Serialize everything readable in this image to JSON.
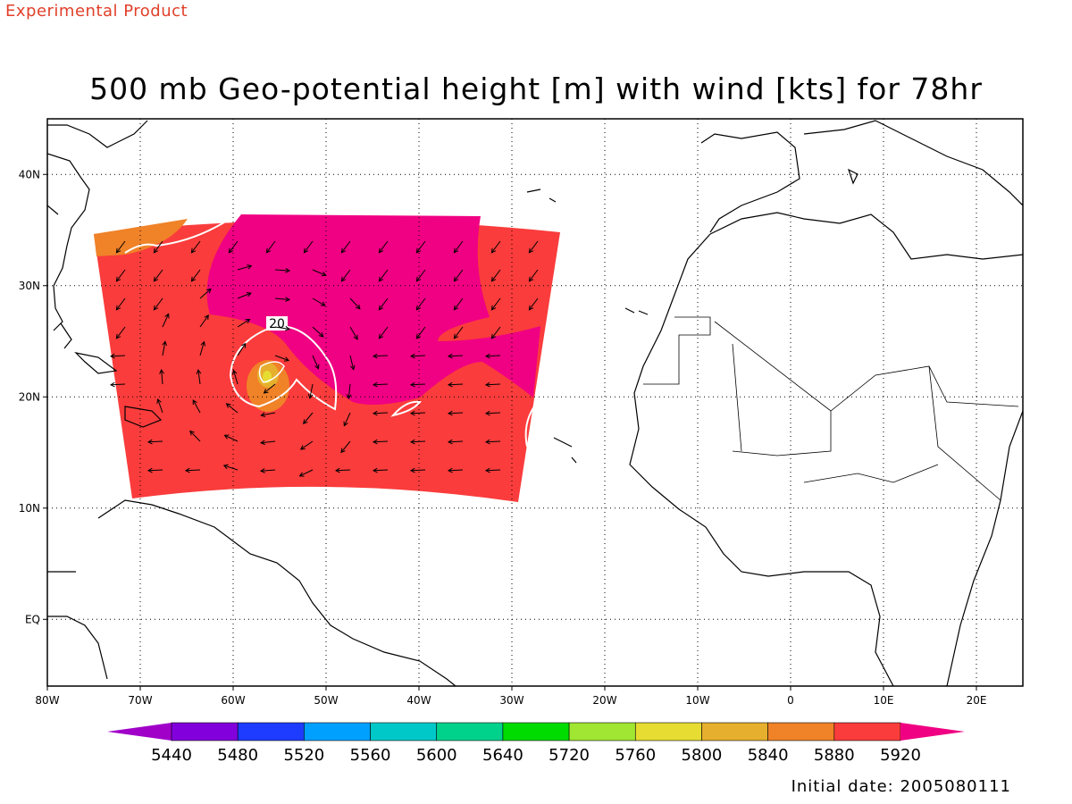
{
  "header": {
    "banner": "Experimental Product",
    "title": "500 mb Geo-potential height [m] with wind [kts] for 78hr"
  },
  "footer": {
    "initial_date": "Initial date: 2005080111"
  },
  "map": {
    "lon_range": [
      -80,
      25
    ],
    "lat_range": [
      -6,
      45
    ],
    "lon_ticks": [
      {
        "lon": -80,
        "label": "80W"
      },
      {
        "lon": -70,
        "label": "70W"
      },
      {
        "lon": -60,
        "label": "60W"
      },
      {
        "lon": -50,
        "label": "50W"
      },
      {
        "lon": -40,
        "label": "40W"
      },
      {
        "lon": -30,
        "label": "30W"
      },
      {
        "lon": -20,
        "label": "20W"
      },
      {
        "lon": -10,
        "label": "10W"
      },
      {
        "lon": 0,
        "label": "0"
      },
      {
        "lon": 10,
        "label": "10E"
      },
      {
        "lon": 20,
        "label": "20E"
      }
    ],
    "lat_ticks": [
      {
        "lat": 40,
        "label": "40N"
      },
      {
        "lat": 30,
        "label": "30N"
      },
      {
        "lat": 20,
        "label": "20N"
      },
      {
        "lat": 10,
        "label": "10N"
      },
      {
        "lat": 0,
        "label": "EQ"
      }
    ],
    "contour_label": "20",
    "grid": "dotted",
    "colors": {
      "h5880": "#f08228",
      "h5920": "#fa3c3c",
      "h5960": "#f00082",
      "h5840": "#e6af2d",
      "h5800": "#e6dc32"
    }
  },
  "colorbar": {
    "colors": [
      "#a000c8",
      "#8200dc",
      "#1e3cff",
      "#00a0ff",
      "#00c8c8",
      "#00d28c",
      "#00dc00",
      "#a0e632",
      "#e6dc32",
      "#e6af2d",
      "#f08228",
      "#fa3c3c",
      "#f00082"
    ],
    "labels": [
      "5440",
      "5480",
      "5520",
      "5560",
      "5600",
      "5640",
      "5720",
      "5760",
      "5800",
      "5840",
      "5880",
      "5920"
    ]
  }
}
